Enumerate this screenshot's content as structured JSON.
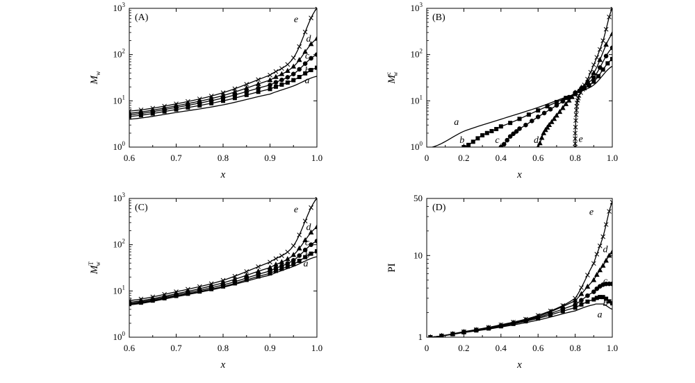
{
  "chart_data": [
    {
      "type": "line",
      "panel_label": "(A)",
      "xlabel": "x",
      "ylabel": "M",
      "ylabel_sub": "w",
      "ylabel_sup": "",
      "xlim": [
        0.6,
        1.0
      ],
      "ylim": [
        1,
        1000
      ],
      "yscale": "log",
      "x_ticks": [
        "0.6",
        "0.7",
        "0.8",
        "0.9",
        "1.0"
      ],
      "y_ticks": [
        {
          "base": "10",
          "exp": "0"
        },
        {
          "base": "10",
          "exp": "1"
        },
        {
          "base": "10",
          "exp": "2"
        },
        {
          "base": "10",
          "exp": "3"
        }
      ],
      "series": [
        {
          "name": "a",
          "marker": "none",
          "x": [
            0.6,
            0.7,
            0.8,
            0.9,
            0.95,
            1.0
          ],
          "y": [
            4,
            5.6,
            8.2,
            14,
            21,
            34
          ]
        },
        {
          "name": "b",
          "marker": "square",
          "x": [
            0.6,
            0.7,
            0.8,
            0.9,
            0.95,
            1.0
          ],
          "y": [
            4.6,
            6.5,
            10,
            18,
            28,
            52
          ]
        },
        {
          "name": "c",
          "marker": "circle",
          "x": [
            0.6,
            0.7,
            0.8,
            0.9,
            0.95,
            1.0
          ],
          "y": [
            5,
            7.2,
            11.5,
            22,
            38,
            100
          ]
        },
        {
          "name": "d",
          "marker": "triangle",
          "x": [
            0.6,
            0.7,
            0.8,
            0.9,
            0.95,
            1.0
          ],
          "y": [
            5.4,
            7.8,
            13,
            28,
            55,
            220
          ]
        },
        {
          "name": "e",
          "marker": "cross",
          "x": [
            0.6,
            0.7,
            0.8,
            0.9,
            0.95,
            1.0
          ],
          "y": [
            6,
            8.6,
            15,
            36,
            85,
            1000
          ]
        }
      ]
    },
    {
      "type": "line",
      "panel_label": "(B)",
      "xlabel": "x",
      "ylabel": "M",
      "ylabel_sub": "w",
      "ylabel_sup": "c",
      "xlim": [
        0,
        1.0
      ],
      "ylim": [
        1,
        1000
      ],
      "yscale": "log",
      "x_ticks": [
        "0",
        "0.2",
        "0.4",
        "0.6",
        "0.8",
        "1.0"
      ],
      "y_ticks": [
        {
          "base": "10",
          "exp": "0"
        },
        {
          "base": "10",
          "exp": "1"
        },
        {
          "base": "10",
          "exp": "2"
        },
        {
          "base": "10",
          "exp": "3"
        }
      ],
      "series": [
        {
          "name": "a",
          "marker": "none",
          "x": [
            0.03,
            0.2,
            0.4,
            0.6,
            0.8,
            0.9,
            1.0
          ],
          "y": [
            1,
            2.2,
            4,
            7.2,
            14,
            22,
            56
          ]
        },
        {
          "name": "b",
          "marker": "square",
          "x": [
            0.2,
            0.3,
            0.4,
            0.6,
            0.8,
            0.9,
            1.0
          ],
          "y": [
            1,
            1.8,
            2.8,
            6.2,
            14,
            26,
            80
          ]
        },
        {
          "name": "c",
          "marker": "circle",
          "x": [
            0.4,
            0.45,
            0.5,
            0.6,
            0.7,
            0.8,
            0.9,
            1.0
          ],
          "y": [
            1,
            1.7,
            2.5,
            4.5,
            8,
            15,
            32,
            140
          ]
        },
        {
          "name": "d",
          "marker": "triangle",
          "x": [
            0.6,
            0.63,
            0.66,
            0.7,
            0.75,
            0.8,
            0.9,
            1.0
          ],
          "y": [
            1,
            2,
            3,
            4.8,
            8.5,
            15,
            40,
            280
          ]
        },
        {
          "name": "e",
          "marker": "cross",
          "x": [
            0.8,
            0.8,
            0.805,
            0.81,
            0.82,
            0.85,
            0.9,
            0.95,
            1.0
          ],
          "y": [
            1,
            2,
            5,
            9,
            13,
            22,
            60,
            200,
            1000
          ]
        }
      ],
      "curve_labels": [
        "a",
        "b",
        "c",
        "d",
        "e"
      ]
    },
    {
      "type": "line",
      "panel_label": "(C)",
      "xlabel": "x",
      "ylabel": "M",
      "ylabel_sub": "w",
      "ylabel_sup": "T",
      "xlim": [
        0.6,
        1.0
      ],
      "ylim": [
        1,
        1000
      ],
      "yscale": "log",
      "x_ticks": [
        "0.6",
        "0.7",
        "0.8",
        "0.9",
        "1.0"
      ],
      "y_ticks": [
        {
          "base": "10",
          "exp": "0"
        },
        {
          "base": "10",
          "exp": "1"
        },
        {
          "base": "10",
          "exp": "2"
        },
        {
          "base": "10",
          "exp": "3"
        }
      ],
      "series": [
        {
          "name": "a",
          "marker": "none",
          "x": [
            0.6,
            0.7,
            0.8,
            0.9,
            0.95,
            1.0
          ],
          "y": [
            5,
            7.5,
            12,
            22,
            34,
            55
          ]
        },
        {
          "name": "b",
          "marker": "square",
          "x": [
            0.6,
            0.7,
            0.8,
            0.9,
            0.95,
            1.0
          ],
          "y": [
            5.2,
            7.8,
            12.5,
            24,
            38,
            72
          ]
        },
        {
          "name": "c",
          "marker": "circle",
          "x": [
            0.6,
            0.7,
            0.8,
            0.9,
            0.95,
            1.0
          ],
          "y": [
            5.4,
            8.2,
            13.5,
            27,
            46,
            120
          ]
        },
        {
          "name": "d",
          "marker": "triangle",
          "x": [
            0.6,
            0.7,
            0.8,
            0.9,
            0.95,
            1.0
          ],
          "y": [
            5.7,
            8.7,
            15,
            32,
            60,
            240
          ]
        },
        {
          "name": "e",
          "marker": "cross",
          "x": [
            0.6,
            0.7,
            0.8,
            0.9,
            0.95,
            1.0
          ],
          "y": [
            6.2,
            9.6,
            17,
            42,
            95,
            1000
          ]
        }
      ]
    },
    {
      "type": "line",
      "panel_label": "(D)",
      "xlabel": "x",
      "ylabel": "PI",
      "ylabel_sub": "",
      "ylabel_sup": "",
      "xlim": [
        0,
        1.0
      ],
      "ylim": [
        1,
        50
      ],
      "yscale": "log",
      "x_ticks": [
        "0",
        "0.2",
        "0.4",
        "0.6",
        "0.8",
        "1.0"
      ],
      "y_ticks": [
        {
          "base": "1",
          "exp": ""
        },
        {
          "base": "10",
          "exp": ""
        },
        {
          "base": "50",
          "exp": ""
        }
      ],
      "series": [
        {
          "name": "a",
          "marker": "none",
          "x": [
            0.02,
            0.2,
            0.4,
            0.6,
            0.8,
            0.9,
            0.95,
            1.0
          ],
          "y": [
            1,
            1.14,
            1.33,
            1.62,
            2.1,
            2.5,
            2.55,
            2.2
          ]
        },
        {
          "name": "b",
          "marker": "square",
          "x": [
            0.02,
            0.2,
            0.4,
            0.6,
            0.8,
            0.9,
            0.95,
            1.0
          ],
          "y": [
            1,
            1.15,
            1.36,
            1.7,
            2.3,
            2.9,
            3.1,
            2.6
          ]
        },
        {
          "name": "c",
          "marker": "circle",
          "x": [
            0.02,
            0.2,
            0.4,
            0.6,
            0.8,
            0.9,
            0.95,
            1.0
          ],
          "y": [
            1,
            1.16,
            1.38,
            1.75,
            2.5,
            3.6,
            4.4,
            4.5
          ]
        },
        {
          "name": "d",
          "marker": "triangle",
          "x": [
            0.02,
            0.2,
            0.4,
            0.6,
            0.8,
            0.9,
            0.95,
            1.0
          ],
          "y": [
            1,
            1.16,
            1.4,
            1.8,
            2.8,
            5,
            7.5,
            11
          ]
        },
        {
          "name": "e",
          "marker": "cross",
          "x": [
            0.02,
            0.2,
            0.4,
            0.6,
            0.8,
            0.9,
            0.95,
            1.0
          ],
          "y": [
            1,
            1.17,
            1.42,
            1.85,
            3,
            8,
            17,
            45
          ]
        }
      ]
    }
  ]
}
